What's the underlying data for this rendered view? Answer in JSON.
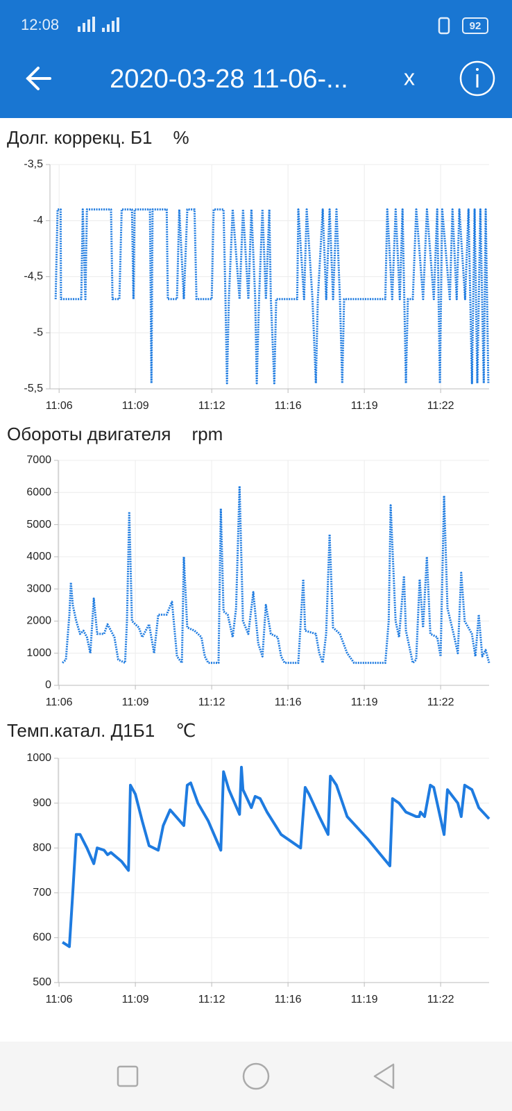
{
  "status_bar": {
    "time": "12:08",
    "battery": "92"
  },
  "app_bar": {
    "title": "2020-03-28 11-06-...",
    "close": "x"
  },
  "chart_data": [
    {
      "type": "line",
      "title": "Долг. коррекц. Б1",
      "unit": "%",
      "color": "#1e7be0",
      "line_style": "dotted",
      "grid": true,
      "x": [
        39951,
        39956,
        39964,
        39965,
        40018,
        40022,
        40029,
        40033,
        40096,
        40100,
        40118,
        40124,
        40151,
        40155,
        40158,
        40198,
        40202,
        40205,
        40242,
        40245,
        40269,
        40275,
        40287,
        40296,
        40315,
        40320,
        40360,
        40365,
        40391,
        40396,
        40400,
        40405,
        40415,
        40433,
        40442,
        40456,
        40464,
        40474,
        40478,
        40484,
        40493,
        40502,
        40511,
        40515,
        40524,
        40529,
        40584,
        40587,
        40602,
        40609,
        40624,
        40633,
        40638,
        40651,
        40660,
        40669,
        40678,
        40687,
        40696,
        40702,
        40707,
        40815,
        40820,
        40833,
        40842,
        40853,
        40860,
        40869,
        40874,
        40887,
        40896,
        40914,
        40924,
        40942,
        40951,
        40958,
        40964,
        40984,
        40991,
        41002,
        41009,
        41024,
        41033,
        41042,
        41049,
        41056,
        41064,
        41073,
        41078,
        41085
      ],
      "values": [
        -4.7,
        -3.9,
        -3.9,
        -4.7,
        -4.7,
        -3.9,
        -4.7,
        -3.9,
        -3.9,
        -4.7,
        -4.7,
        -3.9,
        -3.9,
        -4.7,
        -3.9,
        -3.9,
        -5.45,
        -3.9,
        -3.9,
        -4.7,
        -4.7,
        -3.9,
        -4.7,
        -3.9,
        -3.9,
        -4.7,
        -4.7,
        -3.9,
        -3.9,
        -4.7,
        -5.45,
        -4.7,
        -3.9,
        -4.7,
        -3.9,
        -4.7,
        -3.9,
        -4.7,
        -5.45,
        -4.7,
        -3.9,
        -4.7,
        -3.9,
        -4.7,
        -5.45,
        -4.7,
        -4.7,
        -3.9,
        -4.7,
        -3.9,
        -4.7,
        -5.45,
        -4.7,
        -3.9,
        -4.7,
        -3.9,
        -4.7,
        -3.9,
        -4.7,
        -5.45,
        -4.7,
        -4.7,
        -3.9,
        -4.7,
        -3.9,
        -4.7,
        -3.9,
        -5.45,
        -4.7,
        -4.7,
        -3.9,
        -4.7,
        -3.9,
        -4.7,
        -3.9,
        -5.45,
        -3.9,
        -4.7,
        -3.9,
        -4.7,
        -3.9,
        -4.7,
        -3.9,
        -5.45,
        -3.9,
        -5.45,
        -3.9,
        -5.45,
        -3.9,
        -5.45
      ],
      "xlim": [
        39936,
        41087
      ],
      "xticks": [
        {
          "value": 39960,
          "label": "11:06"
        },
        {
          "value": 40160,
          "label": "11:09"
        },
        {
          "value": 40360,
          "label": "11:12"
        },
        {
          "value": 40560,
          "label": "11:16"
        },
        {
          "value": 40760,
          "label": "11:19"
        },
        {
          "value": 40960,
          "label": "11:22"
        }
      ],
      "ylim": [
        -5.5,
        -3.5
      ],
      "yticks": [
        {
          "value": -3.5,
          "label": "-3,5"
        },
        -4,
        {
          "value": -4.5,
          "label": "-4,5"
        },
        -5,
        {
          "value": -5.5,
          "label": "-5,5"
        }
      ]
    },
    {
      "type": "line",
      "title": "Обороты двигателя",
      "unit": "rpm",
      "color": "#1e7be0",
      "line_style": "dotted",
      "grid": true,
      "x": [
        39969,
        39978,
        39987,
        39991,
        39996,
        40005,
        40015,
        40024,
        40033,
        40042,
        40051,
        40060,
        40078,
        40087,
        40105,
        40115,
        40133,
        40138,
        40144,
        40151,
        40169,
        40178,
        40196,
        40209,
        40220,
        40242,
        40256,
        40269,
        40282,
        40287,
        40296,
        40315,
        40333,
        40342,
        40351,
        40378,
        40384,
        40391,
        40402,
        40415,
        40424,
        40433,
        40442,
        40456,
        40469,
        40482,
        40493,
        40502,
        40515,
        40533,
        40542,
        40551,
        40587,
        40600,
        40605,
        40633,
        40642,
        40651,
        40660,
        40669,
        40678,
        40696,
        40715,
        40733,
        40815,
        40824,
        40829,
        40842,
        40851,
        40864,
        40869,
        40887,
        40896,
        40905,
        40914,
        40924,
        40933,
        40951,
        40960,
        40969,
        40978,
        40996,
        41005,
        41014,
        41023,
        41042,
        41051,
        41060,
        41069,
        41078,
        41087
      ],
      "values": [
        700,
        800,
        2200,
        3200,
        2500,
        2000,
        1600,
        1700,
        1500,
        1000,
        2700,
        1600,
        1600,
        1900,
        1500,
        800,
        700,
        2000,
        5400,
        2000,
        1800,
        1500,
        1900,
        1000,
        2200,
        2200,
        2600,
        900,
        700,
        4000,
        1800,
        1700,
        1500,
        900,
        700,
        700,
        5500,
        2300,
        2200,
        1500,
        2400,
        6200,
        2000,
        1600,
        2900,
        1300,
        900,
        2500,
        1600,
        1500,
        900,
        700,
        700,
        3300,
        1700,
        1600,
        1000,
        700,
        1600,
        4700,
        1800,
        1600,
        1000,
        700,
        700,
        2000,
        5600,
        2000,
        1500,
        3400,
        1700,
        700,
        800,
        3300,
        1800,
        4000,
        1600,
        1500,
        900,
        5900,
        2400,
        1500,
        1000,
        3500,
        2000,
        1600,
        900,
        2200,
        900,
        1100,
        700
      ],
      "xlim": [
        39958,
        41087
      ],
      "xticks": [
        {
          "value": 39960,
          "label": "11:06"
        },
        {
          "value": 40160,
          "label": "11:09"
        },
        {
          "value": 40360,
          "label": "11:12"
        },
        {
          "value": 40560,
          "label": "11:16"
        },
        {
          "value": 40760,
          "label": "11:19"
        },
        {
          "value": 40960,
          "label": "11:22"
        }
      ],
      "ylim": [
        0,
        7000
      ],
      "yticks": [
        0,
        1000,
        2000,
        3000,
        4000,
        5000,
        6000,
        7000
      ]
    },
    {
      "type": "line",
      "title": "Темп.катал. Д1Б1",
      "unit": "℃",
      "color": "#1e7be0",
      "line_style": "solid",
      "grid": true,
      "x": [
        39969,
        39987,
        39996,
        40005,
        40015,
        40033,
        40051,
        40060,
        40078,
        40087,
        40096,
        40124,
        40142,
        40147,
        40160,
        40178,
        40196,
        40220,
        40233,
        40251,
        40287,
        40296,
        40305,
        40324,
        40351,
        40384,
        40391,
        40405,
        40433,
        40438,
        40442,
        40464,
        40474,
        40487,
        40505,
        40542,
        40593,
        40605,
        40615,
        40642,
        40665,
        40671,
        40687,
        40715,
        40769,
        40827,
        40834,
        40851,
        40869,
        40896,
        40904,
        40907,
        40918,
        40933,
        40942,
        40969,
        40978,
        41005,
        41014,
        41023,
        41042,
        41060,
        41087
      ],
      "values": [
        590,
        580,
        700,
        830,
        830,
        800,
        765,
        800,
        795,
        785,
        790,
        770,
        750,
        940,
        920,
        860,
        805,
        795,
        850,
        885,
        850,
        940,
        945,
        900,
        860,
        795,
        970,
        930,
        875,
        980,
        930,
        890,
        915,
        910,
        880,
        830,
        800,
        935,
        920,
        870,
        830,
        960,
        940,
        870,
        820,
        760,
        910,
        900,
        880,
        870,
        870,
        880,
        870,
        940,
        935,
        830,
        930,
        900,
        870,
        940,
        930,
        890,
        865
      ],
      "xlim": [
        39958,
        41087
      ],
      "xticks": [
        {
          "value": 39960,
          "label": "11:06"
        },
        {
          "value": 40160,
          "label": "11:09"
        },
        {
          "value": 40360,
          "label": "11:12"
        },
        {
          "value": 40560,
          "label": "11:16"
        },
        {
          "value": 40760,
          "label": "11:19"
        },
        {
          "value": 40960,
          "label": "11:22"
        }
      ],
      "ylim": [
        500,
        1000
      ],
      "yticks": [
        500,
        600,
        700,
        800,
        900,
        1000
      ]
    }
  ]
}
